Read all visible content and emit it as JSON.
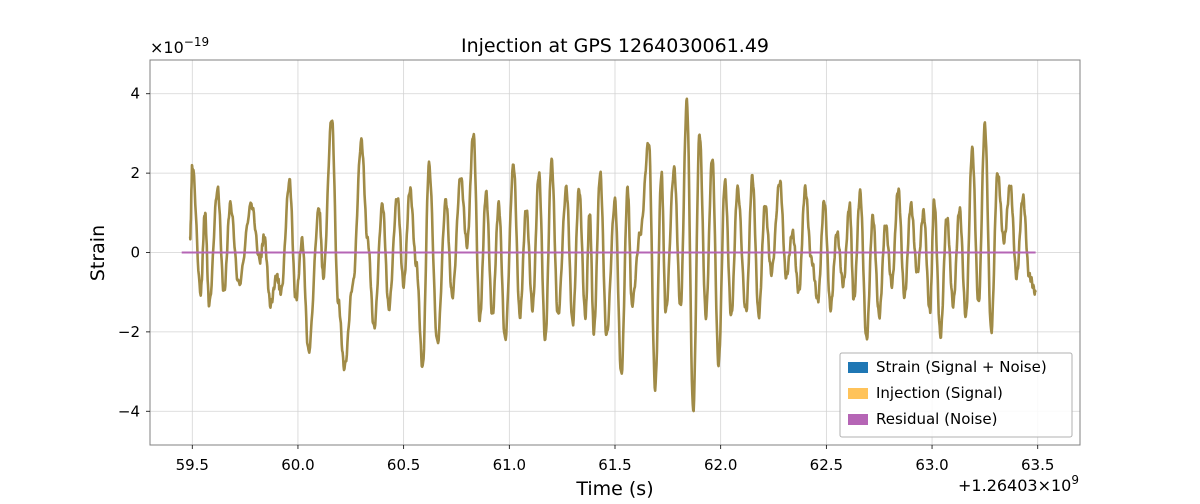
{
  "chart_data": {
    "type": "line",
    "title": "Injection at GPS 1264030061.49",
    "xlabel": "Time (s)",
    "ylabel": "Strain",
    "x_offset_label": "+1.26403×10",
    "x_offset_exponent": "9",
    "y_scale_label": "×10",
    "y_scale_exponent": "−19",
    "xlim": [
      59.3,
      63.7
    ],
    "ylim": [
      -4.85,
      4.85
    ],
    "xticks": [
      59.5,
      60.0,
      60.5,
      61.0,
      61.5,
      62.0,
      62.5,
      63.0,
      63.5
    ],
    "xtick_labels": [
      "59.5",
      "60.0",
      "60.5",
      "61.0",
      "61.5",
      "62.0",
      "62.5",
      "63.0",
      "63.5"
    ],
    "yticks": [
      -4,
      -2,
      0,
      2,
      4
    ],
    "ytick_labels": [
      "−4",
      "−2",
      "0",
      "2",
      "4"
    ],
    "grid": true,
    "legend_position": "bottom-right",
    "series": [
      {
        "name": "Strain (Signal + Noise)",
        "color": "#1f77b4",
        "x_start": 59.49,
        "x_end": 63.49,
        "extrema": [
          [
            59.49,
            0.4
          ],
          [
            59.5,
            2.2
          ],
          [
            59.54,
            -1.0
          ],
          [
            59.56,
            1.0
          ],
          [
            59.58,
            -1.3
          ],
          [
            59.62,
            1.6
          ],
          [
            59.65,
            -1.0
          ],
          [
            59.68,
            1.2
          ],
          [
            59.72,
            -0.8
          ],
          [
            59.78,
            1.2
          ],
          [
            59.82,
            -0.2
          ],
          [
            59.84,
            0.4
          ],
          [
            59.87,
            -1.3
          ],
          [
            59.9,
            -0.6
          ],
          [
            59.92,
            -1.0
          ],
          [
            59.96,
            1.8
          ],
          [
            59.99,
            -1.2
          ],
          [
            60.02,
            0.3
          ],
          [
            60.05,
            -2.5
          ],
          [
            60.1,
            1.1
          ],
          [
            60.12,
            -0.6
          ],
          [
            60.16,
            3.4
          ],
          [
            60.19,
            -1.2
          ],
          [
            60.22,
            -2.9
          ],
          [
            60.26,
            -0.8
          ],
          [
            60.3,
            2.8
          ],
          [
            60.33,
            0.3
          ],
          [
            60.36,
            -1.9
          ],
          [
            60.4,
            1.2
          ],
          [
            60.43,
            -1.4
          ],
          [
            60.47,
            1.4
          ],
          [
            60.5,
            -0.8
          ],
          [
            60.53,
            1.6
          ],
          [
            60.56,
            -0.3
          ],
          [
            60.59,
            -2.9
          ],
          [
            60.62,
            2.2
          ],
          [
            60.66,
            -2.3
          ],
          [
            60.7,
            1.3
          ],
          [
            60.73,
            -1.1
          ],
          [
            60.77,
            1.9
          ],
          [
            60.8,
            0.2
          ],
          [
            60.83,
            3.0
          ],
          [
            60.86,
            -1.7
          ],
          [
            60.89,
            1.5
          ],
          [
            60.92,
            -1.6
          ],
          [
            60.95,
            1.2
          ],
          [
            60.98,
            -2.2
          ],
          [
            61.02,
            2.2
          ],
          [
            61.05,
            -1.6
          ],
          [
            61.08,
            1.1
          ],
          [
            61.11,
            -1.4
          ],
          [
            61.14,
            2.0
          ],
          [
            61.17,
            -2.2
          ],
          [
            61.2,
            2.3
          ],
          [
            61.23,
            -1.6
          ],
          [
            61.27,
            1.6
          ],
          [
            61.3,
            -1.8
          ],
          [
            61.33,
            1.6
          ],
          [
            61.36,
            -1.6
          ],
          [
            61.38,
            1.0
          ],
          [
            61.4,
            -2.0
          ],
          [
            61.43,
            2.0
          ],
          [
            61.46,
            -2.1
          ],
          [
            61.5,
            1.3
          ],
          [
            61.53,
            -3.1
          ],
          [
            61.56,
            1.6
          ],
          [
            61.58,
            -1.3
          ],
          [
            61.62,
            0.5
          ],
          [
            61.66,
            2.8
          ],
          [
            61.69,
            -3.4
          ],
          [
            61.72,
            2.0
          ],
          [
            61.74,
            -1.5
          ],
          [
            61.78,
            2.1
          ],
          [
            61.81,
            -1.4
          ],
          [
            61.84,
            3.8
          ],
          [
            61.87,
            -4.0
          ],
          [
            61.9,
            3.0
          ],
          [
            61.93,
            -1.6
          ],
          [
            61.96,
            2.4
          ],
          [
            61.99,
            -2.8
          ],
          [
            62.02,
            1.8
          ],
          [
            62.05,
            -1.6
          ],
          [
            62.08,
            1.6
          ],
          [
            62.12,
            -1.5
          ],
          [
            62.15,
            1.9
          ],
          [
            62.18,
            -1.6
          ],
          [
            62.21,
            1.2
          ],
          [
            62.24,
            -0.5
          ],
          [
            62.28,
            1.8
          ],
          [
            62.31,
            -0.6
          ],
          [
            62.34,
            0.5
          ],
          [
            62.37,
            -1.0
          ],
          [
            62.4,
            1.6
          ],
          [
            62.43,
            -0.2
          ],
          [
            62.46,
            -1.2
          ],
          [
            62.49,
            1.3
          ],
          [
            62.52,
            -1.4
          ],
          [
            62.55,
            0.5
          ],
          [
            62.58,
            -0.8
          ],
          [
            62.61,
            1.2
          ],
          [
            62.63,
            -1.2
          ],
          [
            62.66,
            1.5
          ],
          [
            62.69,
            -2.2
          ],
          [
            62.72,
            0.9
          ],
          [
            62.75,
            -1.6
          ],
          [
            62.78,
            0.7
          ],
          [
            62.81,
            -0.8
          ],
          [
            62.84,
            1.6
          ],
          [
            62.87,
            -1.1
          ],
          [
            62.9,
            1.2
          ],
          [
            62.93,
            -0.5
          ],
          [
            62.96,
            1.0
          ],
          [
            62.99,
            -1.5
          ],
          [
            63.01,
            1.3
          ],
          [
            63.04,
            -2.1
          ],
          [
            63.07,
            0.9
          ],
          [
            63.1,
            -1.3
          ],
          [
            63.13,
            1.1
          ],
          [
            63.16,
            -1.6
          ],
          [
            63.19,
            2.6
          ],
          [
            63.22,
            -1.3
          ],
          [
            63.25,
            3.2
          ],
          [
            63.28,
            -2.0
          ],
          [
            63.31,
            2.0
          ],
          [
            63.34,
            0.3
          ],
          [
            63.37,
            1.7
          ],
          [
            63.4,
            -0.6
          ],
          [
            63.43,
            1.4
          ],
          [
            63.46,
            -0.6
          ],
          [
            63.49,
            -1.0
          ]
        ]
      },
      {
        "name": "Injection (Signal)",
        "color": "#ffc35a"
      },
      {
        "name": "Residual (Noise)",
        "color": "#b565b5",
        "x_start": 59.45,
        "x_end": 63.49,
        "values": [
          0.0,
          0.0
        ]
      }
    ],
    "overlap_color": "#a08b47"
  }
}
